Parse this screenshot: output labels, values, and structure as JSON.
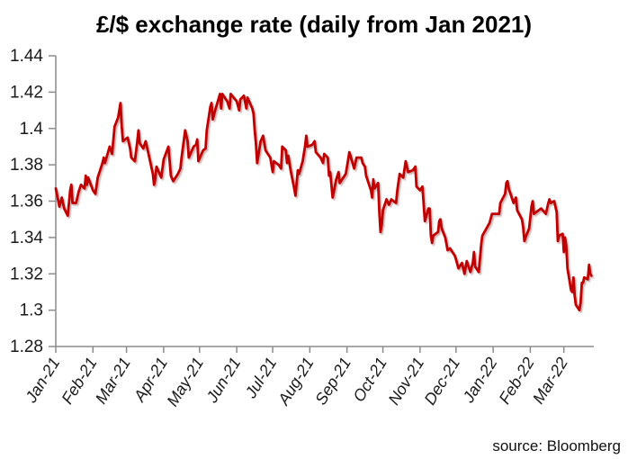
{
  "page": {
    "title": "£/$ exchange rate (daily from Jan 2021)",
    "source_note": "source: Bloomberg"
  },
  "colors": {
    "line": "#C00000",
    "axis": "#8C8C8C",
    "label_text": "#1A1A1A",
    "background": "#FFFFFF"
  },
  "chart_data": {
    "type": "line",
    "title": "£/$ exchange rate (daily from Jan 2021)",
    "xlabel": "",
    "ylabel": "",
    "ylim": [
      1.28,
      1.44
    ],
    "grid": false,
    "legend": "none",
    "source": "source: Bloomberg",
    "y_tick_values": [
      1.44,
      1.42,
      1.4,
      1.38,
      1.36,
      1.34,
      1.32,
      1.3,
      1.28
    ],
    "y_tick_labels": [
      "1.44",
      "1.42",
      "1.4",
      "1.38",
      "1.36",
      "1.34",
      "1.32",
      "1.3",
      "1.28"
    ],
    "x_tick_dates": [
      "2021-01-01",
      "2021-02-01",
      "2021-03-01",
      "2021-04-01",
      "2021-05-01",
      "2021-06-01",
      "2021-07-01",
      "2021-08-01",
      "2021-09-01",
      "2021-10-01",
      "2021-11-01",
      "2021-12-01",
      "2022-01-01",
      "2022-02-01",
      "2022-03-01"
    ],
    "x_tick_labels": [
      "Jan-21",
      "Feb-21",
      "Mar-21",
      "Apr-21",
      "May-21",
      "Jun-21",
      "Jul-21",
      "Aug-21",
      "Sep-21",
      "Oct-21",
      "Nov-21",
      "Dec-21",
      "Jan-22",
      "Feb-22",
      "Mar-22"
    ],
    "x_domain": [
      "2021-01-01",
      "2022-03-26"
    ],
    "series": [
      {
        "name": "£/$ exchange rate",
        "color": "#C00000",
        "dates": [
          "2021-01-01",
          "2021-01-04",
          "2021-01-06",
          "2021-01-08",
          "2021-01-11",
          "2021-01-13",
          "2021-01-14",
          "2021-01-15",
          "2021-01-18",
          "2021-01-20",
          "2021-01-22",
          "2021-01-25",
          "2021-01-26",
          "2021-01-27",
          "2021-01-28",
          "2021-02-01",
          "2021-02-03",
          "2021-02-05",
          "2021-02-09",
          "2021-02-10",
          "2021-02-11",
          "2021-02-15",
          "2021-02-17",
          "2021-02-19",
          "2021-02-22",
          "2021-02-24",
          "2021-02-25",
          "2021-02-26",
          "2021-03-02",
          "2021-03-04",
          "2021-03-05",
          "2021-03-08",
          "2021-03-10",
          "2021-03-11",
          "2021-03-12",
          "2021-03-15",
          "2021-03-17",
          "2021-03-19",
          "2021-03-23",
          "2021-03-24",
          "2021-03-25",
          "2021-03-26",
          "2021-03-30",
          "2021-04-01",
          "2021-04-05",
          "2021-04-07",
          "2021-04-09",
          "2021-04-13",
          "2021-04-15",
          "2021-04-16",
          "2021-04-19",
          "2021-04-21",
          "2021-04-22",
          "2021-04-26",
          "2021-04-28",
          "2021-04-29",
          "2021-04-30",
          "2021-05-04",
          "2021-05-06",
          "2021-05-07",
          "2021-05-10",
          "2021-05-11",
          "2021-05-12",
          "2021-05-14",
          "2021-05-18",
          "2021-05-19",
          "2021-05-20",
          "2021-05-24",
          "2021-05-26",
          "2021-05-27",
          "2021-06-01",
          "2021-06-03",
          "2021-06-04",
          "2021-06-07",
          "2021-06-09",
          "2021-06-10",
          "2021-06-14",
          "2021-06-15",
          "2021-06-16",
          "2021-06-17",
          "2021-06-18",
          "2021-06-21",
          "2021-06-23",
          "2021-06-25",
          "2021-06-29",
          "2021-07-01",
          "2021-07-02",
          "2021-07-06",
          "2021-07-08",
          "2021-07-09",
          "2021-07-12",
          "2021-07-13",
          "2021-07-14",
          "2021-07-16",
          "2021-07-19",
          "2021-07-20",
          "2021-07-22",
          "2021-07-23",
          "2021-07-26",
          "2021-07-28",
          "2021-07-29",
          "2021-07-30",
          "2021-08-03",
          "2021-08-05",
          "2021-08-06",
          "2021-08-10",
          "2021-08-12",
          "2021-08-13",
          "2021-08-16",
          "2021-08-17",
          "2021-08-18",
          "2021-08-20",
          "2021-08-23",
          "2021-08-25",
          "2021-08-26",
          "2021-08-31",
          "2021-09-02",
          "2021-09-03",
          "2021-09-07",
          "2021-09-09",
          "2021-09-13",
          "2021-09-14",
          "2021-09-16",
          "2021-09-17",
          "2021-09-21",
          "2021-09-22",
          "2021-09-23",
          "2021-09-24",
          "2021-09-27",
          "2021-09-28",
          "2021-09-29",
          "2021-09-30",
          "2021-10-01",
          "2021-10-04",
          "2021-10-06",
          "2021-10-08",
          "2021-10-12",
          "2021-10-13",
          "2021-10-15",
          "2021-10-18",
          "2021-10-20",
          "2021-10-22",
          "2021-10-26",
          "2021-10-28",
          "2021-10-29",
          "2021-11-01",
          "2021-11-03",
          "2021-11-05",
          "2021-11-08",
          "2021-11-09",
          "2021-11-10",
          "2021-11-11",
          "2021-11-12",
          "2021-11-16",
          "2021-11-17",
          "2021-11-18",
          "2021-11-19",
          "2021-11-22",
          "2021-11-24",
          "2021-11-26",
          "2021-11-30",
          "2021-12-01",
          "2021-12-03",
          "2021-12-06",
          "2021-12-08",
          "2021-12-10",
          "2021-12-13",
          "2021-12-15",
          "2021-12-16",
          "2021-12-17",
          "2021-12-20",
          "2021-12-22",
          "2021-12-23",
          "2021-12-29",
          "2021-12-31",
          "2022-01-04",
          "2022-01-06",
          "2022-01-07",
          "2022-01-11",
          "2022-01-12",
          "2022-01-13",
          "2022-01-14",
          "2022-01-18",
          "2022-01-20",
          "2022-01-21",
          "2022-01-25",
          "2022-01-26",
          "2022-01-27",
          "2022-01-28",
          "2022-01-31",
          "2022-02-02",
          "2022-02-03",
          "2022-02-04",
          "2022-02-08",
          "2022-02-10",
          "2022-02-14",
          "2022-02-16",
          "2022-02-17",
          "2022-02-18",
          "2022-02-21",
          "2022-02-23",
          "2022-02-24",
          "2022-02-25",
          "2022-02-28",
          "2022-03-01",
          "2022-03-02",
          "2022-03-03",
          "2022-03-04",
          "2022-03-07",
          "2022-03-08",
          "2022-03-09",
          "2022-03-10",
          "2022-03-11",
          "2022-03-14",
          "2022-03-15",
          "2022-03-16",
          "2022-03-17",
          "2022-03-18",
          "2022-03-21",
          "2022-03-22",
          "2022-03-23",
          "2022-03-24"
        ],
        "values": [
          1.367,
          1.357,
          1.362,
          1.356,
          1.352,
          1.366,
          1.369,
          1.359,
          1.359,
          1.365,
          1.369,
          1.367,
          1.374,
          1.369,
          1.373,
          1.366,
          1.364,
          1.373,
          1.381,
          1.384,
          1.381,
          1.39,
          1.386,
          1.401,
          1.406,
          1.414,
          1.401,
          1.393,
          1.395,
          1.389,
          1.384,
          1.382,
          1.393,
          1.399,
          1.392,
          1.389,
          1.393,
          1.387,
          1.375,
          1.369,
          1.372,
          1.379,
          1.373,
          1.383,
          1.39,
          1.374,
          1.371,
          1.375,
          1.378,
          1.384,
          1.399,
          1.393,
          1.384,
          1.39,
          1.391,
          1.394,
          1.382,
          1.388,
          1.389,
          1.399,
          1.412,
          1.414,
          1.405,
          1.41,
          1.419,
          1.411,
          1.419,
          1.415,
          1.411,
          1.419,
          1.415,
          1.41,
          1.416,
          1.418,
          1.411,
          1.417,
          1.411,
          1.408,
          1.399,
          1.392,
          1.381,
          1.393,
          1.396,
          1.388,
          1.384,
          1.376,
          1.382,
          1.38,
          1.378,
          1.39,
          1.388,
          1.381,
          1.385,
          1.377,
          1.367,
          1.363,
          1.377,
          1.375,
          1.382,
          1.39,
          1.396,
          1.39,
          1.391,
          1.393,
          1.387,
          1.384,
          1.381,
          1.386,
          1.384,
          1.374,
          1.376,
          1.362,
          1.372,
          1.376,
          1.37,
          1.375,
          1.383,
          1.387,
          1.378,
          1.384,
          1.384,
          1.381,
          1.379,
          1.374,
          1.366,
          1.362,
          1.372,
          1.367,
          1.37,
          1.354,
          1.343,
          1.347,
          1.355,
          1.361,
          1.358,
          1.361,
          1.359,
          1.366,
          1.375,
          1.373,
          1.382,
          1.376,
          1.377,
          1.379,
          1.368,
          1.366,
          1.368,
          1.349,
          1.356,
          1.356,
          1.341,
          1.337,
          1.341,
          1.343,
          1.349,
          1.35,
          1.345,
          1.34,
          1.333,
          1.334,
          1.33,
          1.328,
          1.323,
          1.326,
          1.32,
          1.327,
          1.321,
          1.326,
          1.332,
          1.324,
          1.321,
          1.336,
          1.341,
          1.348,
          1.353,
          1.353,
          1.353,
          1.359,
          1.364,
          1.37,
          1.371,
          1.367,
          1.359,
          1.362,
          1.355,
          1.35,
          1.346,
          1.338,
          1.34,
          1.345,
          1.357,
          1.36,
          1.353,
          1.355,
          1.356,
          1.353,
          1.359,
          1.361,
          1.359,
          1.36,
          1.354,
          1.338,
          1.341,
          1.342,
          1.332,
          1.34,
          1.335,
          1.323,
          1.311,
          1.31,
          1.318,
          1.308,
          1.303,
          1.3,
          1.304,
          1.315,
          1.315,
          1.318,
          1.317,
          1.325,
          1.32,
          1.319
        ]
      }
    ]
  }
}
